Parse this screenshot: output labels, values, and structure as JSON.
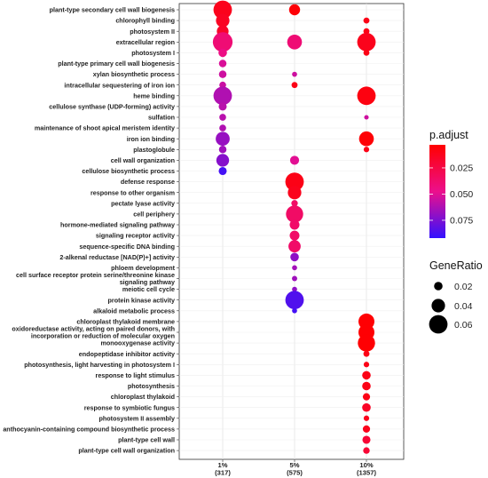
{
  "chart_data": {
    "type": "scatter",
    "title": "",
    "xlabel": "",
    "ylabel": "",
    "x_categories": [
      {
        "label": "1%",
        "sublabel": "(317)"
      },
      {
        "label": "5%",
        "sublabel": "(575)"
      },
      {
        "label": "10%",
        "sublabel": "(1357)"
      }
    ],
    "terms": [
      "plant-type secondary cell wall biogenesis",
      "chlorophyll binding",
      "photosystem II",
      "extracellular region",
      "photosystem I",
      "plant-type primary cell wall biogenesis",
      "xylan biosynthetic process",
      "intracellular sequestering of iron ion",
      "heme binding",
      "cellulose synthase (UDP-forming) activity",
      "sulfation",
      "maintenance of shoot apical meristem identity",
      "iron ion binding",
      "plastoglobule",
      "cell wall organization",
      "cellulose biosynthetic process",
      "defense response",
      "response to other organism",
      "pectate lyase activity",
      "cell periphery",
      "hormone-mediated signaling pathway",
      "signaling receptor activity",
      "sequence-specific DNA binding",
      "2-alkenal reductase [NAD(P)+] activity",
      "phloem development",
      "cell surface receptor protein serine/threonine kinase signaling pathway",
      "meiotic cell cycle",
      "protein kinase activity",
      "alkaloid metabolic process",
      "chloroplast thylakoid membrane",
      "oxidoreductase activity, acting on paired donors, with incorporation or reduction of molecular oxygen",
      "monooxygenase activity",
      "endopeptidase inhibitor activity",
      "photosynthesis, light harvesting in photosystem I",
      "response to light stimulus",
      "photosynthesis",
      "chloroplast thylakoid",
      "response to symbiotic fungus",
      "photosystem II assembly",
      "anthocyanin-containing compound biosynthetic process",
      "plant-type cell wall",
      "plant-type cell wall organization"
    ],
    "points": [
      {
        "x": 0,
        "term": 0,
        "gene_ratio": 0.06,
        "p_adjust": 0.012
      },
      {
        "x": 0,
        "term": 1,
        "gene_ratio": 0.04,
        "p_adjust": 0.014
      },
      {
        "x": 0,
        "term": 2,
        "gene_ratio": 0.033,
        "p_adjust": 0.016
      },
      {
        "x": 0,
        "term": 3,
        "gene_ratio": 0.065,
        "p_adjust": 0.04
      },
      {
        "x": 0,
        "term": 4,
        "gene_ratio": 0.02,
        "p_adjust": 0.045
      },
      {
        "x": 0,
        "term": 5,
        "gene_ratio": 0.016,
        "p_adjust": 0.052
      },
      {
        "x": 0,
        "term": 6,
        "gene_ratio": 0.016,
        "p_adjust": 0.055
      },
      {
        "x": 0,
        "term": 7,
        "gene_ratio": 0.013,
        "p_adjust": 0.056
      },
      {
        "x": 0,
        "term": 8,
        "gene_ratio": 0.06,
        "p_adjust": 0.062
      },
      {
        "x": 0,
        "term": 9,
        "gene_ratio": 0.018,
        "p_adjust": 0.06
      },
      {
        "x": 0,
        "term": 10,
        "gene_ratio": 0.013,
        "p_adjust": 0.06
      },
      {
        "x": 0,
        "term": 11,
        "gene_ratio": 0.013,
        "p_adjust": 0.062
      },
      {
        "x": 0,
        "term": 12,
        "gene_ratio": 0.042,
        "p_adjust": 0.068
      },
      {
        "x": 0,
        "term": 13,
        "gene_ratio": 0.016,
        "p_adjust": 0.066
      },
      {
        "x": 0,
        "term": 14,
        "gene_ratio": 0.037,
        "p_adjust": 0.072
      },
      {
        "x": 0,
        "term": 15,
        "gene_ratio": 0.018,
        "p_adjust": 0.088
      },
      {
        "x": 1,
        "term": 0,
        "gene_ratio": 0.03,
        "p_adjust": 0.005
      },
      {
        "x": 1,
        "term": 3,
        "gene_ratio": 0.045,
        "p_adjust": 0.04
      },
      {
        "x": 1,
        "term": 6,
        "gene_ratio": 0.006,
        "p_adjust": 0.055
      },
      {
        "x": 1,
        "term": 7,
        "gene_ratio": 0.01,
        "p_adjust": 0.01
      },
      {
        "x": 1,
        "term": 14,
        "gene_ratio": 0.022,
        "p_adjust": 0.05
      },
      {
        "x": 1,
        "term": 16,
        "gene_ratio": 0.06,
        "p_adjust": 0.01
      },
      {
        "x": 1,
        "term": 17,
        "gene_ratio": 0.04,
        "p_adjust": 0.012
      },
      {
        "x": 1,
        "term": 18,
        "gene_ratio": 0.012,
        "p_adjust": 0.035
      },
      {
        "x": 1,
        "term": 19,
        "gene_ratio": 0.055,
        "p_adjust": 0.035
      },
      {
        "x": 1,
        "term": 20,
        "gene_ratio": 0.025,
        "p_adjust": 0.036
      },
      {
        "x": 1,
        "term": 21,
        "gene_ratio": 0.025,
        "p_adjust": 0.036
      },
      {
        "x": 1,
        "term": 22,
        "gene_ratio": 0.035,
        "p_adjust": 0.036
      },
      {
        "x": 1,
        "term": 23,
        "gene_ratio": 0.02,
        "p_adjust": 0.07
      },
      {
        "x": 1,
        "term": 24,
        "gene_ratio": 0.006,
        "p_adjust": 0.065
      },
      {
        "x": 1,
        "term": 25,
        "gene_ratio": 0.007,
        "p_adjust": 0.066
      },
      {
        "x": 1,
        "term": 26,
        "gene_ratio": 0.006,
        "p_adjust": 0.07
      },
      {
        "x": 1,
        "term": 27,
        "gene_ratio": 0.06,
        "p_adjust": 0.085
      },
      {
        "x": 1,
        "term": 28,
        "gene_ratio": 0.006,
        "p_adjust": 0.088
      },
      {
        "x": 2,
        "term": 1,
        "gene_ratio": 0.01,
        "p_adjust": 0.01
      },
      {
        "x": 2,
        "term": 2,
        "gene_ratio": 0.01,
        "p_adjust": 0.01
      },
      {
        "x": 2,
        "term": 3,
        "gene_ratio": 0.06,
        "p_adjust": 0.012
      },
      {
        "x": 2,
        "term": 4,
        "gene_ratio": 0.01,
        "p_adjust": 0.01
      },
      {
        "x": 2,
        "term": 8,
        "gene_ratio": 0.06,
        "p_adjust": 0.008
      },
      {
        "x": 2,
        "term": 10,
        "gene_ratio": 0.004,
        "p_adjust": 0.055
      },
      {
        "x": 2,
        "term": 12,
        "gene_ratio": 0.045,
        "p_adjust": 0.005
      },
      {
        "x": 2,
        "term": 13,
        "gene_ratio": 0.008,
        "p_adjust": 0.01
      },
      {
        "x": 2,
        "term": 29,
        "gene_ratio": 0.05,
        "p_adjust": 0.004
      },
      {
        "x": 2,
        "term": 30,
        "gene_ratio": 0.05,
        "p_adjust": 0.004
      },
      {
        "x": 2,
        "term": 31,
        "gene_ratio": 0.055,
        "p_adjust": 0.004
      },
      {
        "x": 2,
        "term": 32,
        "gene_ratio": 0.01,
        "p_adjust": 0.01
      },
      {
        "x": 2,
        "term": 33,
        "gene_ratio": 0.008,
        "p_adjust": 0.01
      },
      {
        "x": 2,
        "term": 34,
        "gene_ratio": 0.02,
        "p_adjust": 0.01
      },
      {
        "x": 2,
        "term": 35,
        "gene_ratio": 0.02,
        "p_adjust": 0.01
      },
      {
        "x": 2,
        "term": 36,
        "gene_ratio": 0.015,
        "p_adjust": 0.01
      },
      {
        "x": 2,
        "term": 37,
        "gene_ratio": 0.02,
        "p_adjust": 0.015
      },
      {
        "x": 2,
        "term": 38,
        "gene_ratio": 0.008,
        "p_adjust": 0.012
      },
      {
        "x": 2,
        "term": 39,
        "gene_ratio": 0.015,
        "p_adjust": 0.012
      },
      {
        "x": 2,
        "term": 40,
        "gene_ratio": 0.018,
        "p_adjust": 0.02
      },
      {
        "x": 2,
        "term": 41,
        "gene_ratio": 0.012,
        "p_adjust": 0.02
      }
    ],
    "color_legend": {
      "title": "p.adjust",
      "ticks": [
        0.025,
        0.05,
        0.075
      ],
      "tick_labels": [
        "0.025",
        "0.050",
        "0.075"
      ],
      "range": [
        0.003,
        0.092
      ],
      "colors": {
        "low": "#ff0000",
        "high": "#3311ff"
      }
    },
    "size_legend": {
      "title": "GeneRatio",
      "values": [
        0.02,
        0.04,
        0.06
      ],
      "labels": [
        "0.02",
        "0.04",
        "0.06"
      ]
    },
    "grid": true
  }
}
